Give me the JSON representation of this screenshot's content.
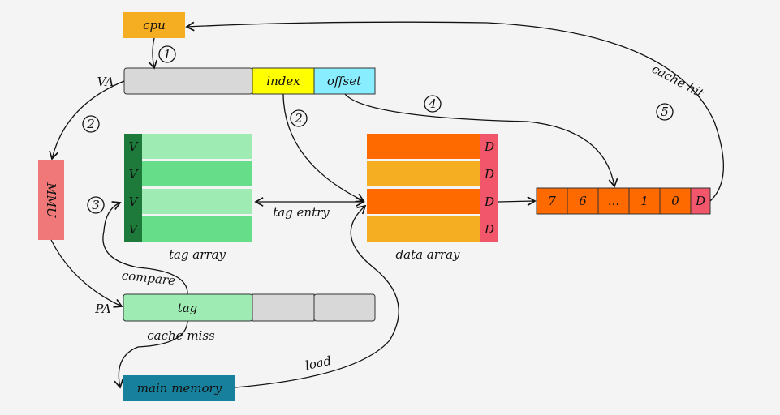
{
  "nodes": {
    "cpu": "cpu",
    "va_label": "VA",
    "index": "index",
    "offset": "offset",
    "mmu": "MMU",
    "pa_label": "PA",
    "pa_tag": "tag",
    "main_memory": "main memory",
    "tag_array_label": "tag array",
    "data_array_label": "data array",
    "valid_bit": "V",
    "dirty_bit": "D",
    "cache_line_bytes": [
      "7",
      "6",
      "...",
      "1",
      "0"
    ]
  },
  "edges": {
    "step1": "1",
    "step2a": "2",
    "step2b": "2",
    "step3": "3",
    "step4": "4",
    "step5": "5",
    "tag_entry": "tag entry",
    "compare": "compare",
    "cache_miss": "cache miss",
    "cache_hit": "cache hit",
    "load": "load"
  },
  "colors": {
    "cpu": "#f5ae22",
    "index": "#ffff00",
    "offset": "#88eeff",
    "valid": "#1e7a3a",
    "tag_light": "#9eecb4",
    "tag_dark": "#66dd88",
    "data_orange": "#ff6a00",
    "data_yellow": "#f5ae22",
    "dirty": "#f2566a",
    "mmu": "#f07878",
    "main_memory": "#17809c"
  }
}
